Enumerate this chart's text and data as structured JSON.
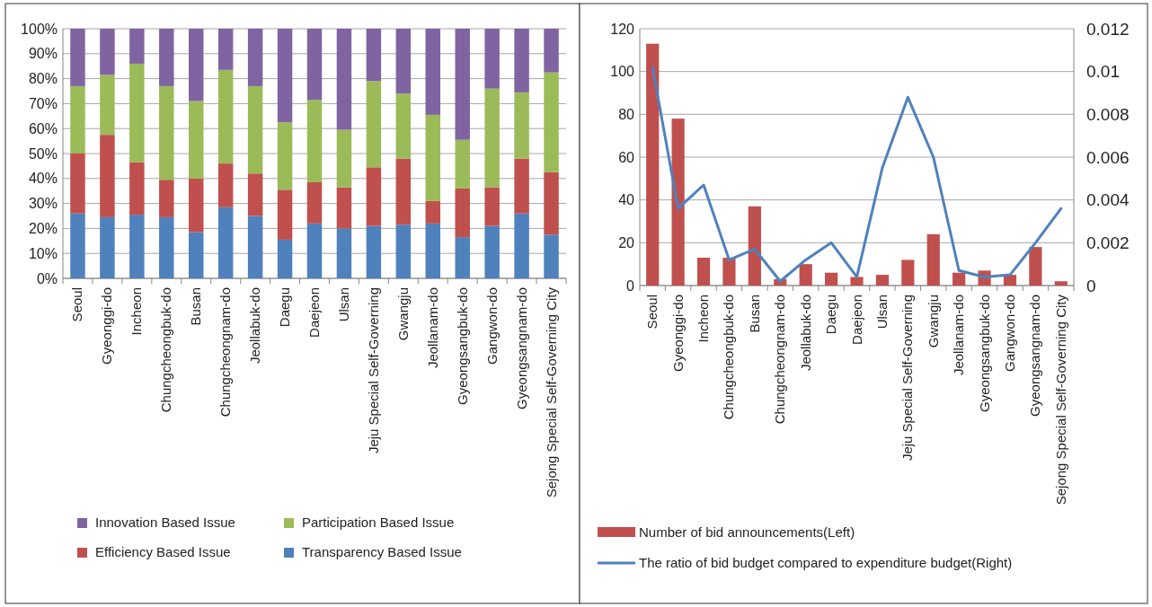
{
  "chart_data": [
    {
      "type": "bar",
      "stacked": true,
      "categories": [
        "Seoul",
        "Gyeonggi-do",
        "Incheon",
        "Chungcheongbuk-do",
        "Busan",
        "Chungcheongnam-do",
        "Jeollabuk-do",
        "Daegu",
        "Daejeon",
        "Ulsan",
        "Jeju Special Self-Governing",
        "Gwangju",
        "Jeollanam-do",
        "Gyeongsangbuk-do",
        "Gangwon-do",
        "Gyeongsangnam-do",
        "Sejong Special Self-Governing City"
      ],
      "series": [
        {
          "name": "Transparency Based Issue",
          "color": "#4f81bd",
          "values": [
            26,
            24.5,
            25.5,
            24.5,
            18.5,
            28.5,
            25,
            15.5,
            22,
            20,
            21,
            21.5,
            22,
            16.5,
            21,
            26,
            17.5
          ]
        },
        {
          "name": "Efficiency Based Issue",
          "color": "#c0504d",
          "values": [
            24,
            33,
            21,
            15,
            21.5,
            17.5,
            17,
            20,
            16.5,
            16.5,
            23.5,
            26.5,
            9,
            19.5,
            15.5,
            22,
            25
          ]
        },
        {
          "name": "Participation Based Issue",
          "color": "#9bbb59",
          "values": [
            27,
            24,
            39.5,
            37.5,
            31,
            37.5,
            35,
            27,
            33,
            23,
            34.5,
            26,
            34.5,
            19.5,
            39.5,
            26.5,
            40
          ]
        },
        {
          "name": "Innovation Based Issue",
          "color": "#8064a2",
          "values": [
            23,
            18.5,
            14,
            23,
            29,
            16.5,
            23,
            37.5,
            28.5,
            40.5,
            21,
            26,
            34.5,
            44.5,
            24,
            25.5,
            17.5
          ]
        }
      ],
      "ylim": [
        0,
        100
      ],
      "yticks": [
        {
          "value": 0,
          "label": "0%"
        },
        {
          "value": 10,
          "label": "10%"
        },
        {
          "value": 20,
          "label": "20%"
        },
        {
          "value": 30,
          "label": "30%"
        },
        {
          "value": 40,
          "label": "40%"
        },
        {
          "value": 50,
          "label": "50%"
        },
        {
          "value": 60,
          "label": "60%"
        },
        {
          "value": 70,
          "label": "70%"
        },
        {
          "value": 80,
          "label": "80%"
        },
        {
          "value": 90,
          "label": "90%"
        },
        {
          "value": 100,
          "label": "100%"
        }
      ],
      "grid": "y",
      "legend": "bottom"
    },
    {
      "type": "bar",
      "categories": [
        "Seoul",
        "Gyeonggi-do",
        "Incheon",
        "Chungcheongbuk-do",
        "Busan",
        "Chungcheongnam-do",
        "Jeollabuk-do",
        "Daegu",
        "Daejeon",
        "Ulsan",
        "Jeju Special Self-Governing",
        "Gwangju",
        "Jeollanam-do",
        "Gyeongsangbuk-do",
        "Gangwon-do",
        "Gyeongsangnam-do",
        "Sejong Special Self-Governing City"
      ],
      "series": [
        {
          "name": "Number of bid announcements(Left)",
          "type": "bar",
          "color": "#c0504d",
          "values": [
            113,
            78,
            13,
            13,
            37,
            3,
            10,
            6,
            4,
            5,
            12,
            24,
            6,
            7,
            5,
            18,
            2
          ]
        },
        {
          "name": "The ratio of bid budget compared to expenditure budget(Right)",
          "type": "line",
          "axis": "y2",
          "color": "#4f81bd",
          "values": [
            0.0102,
            0.0036,
            0.0047,
            0.0012,
            0.0017,
            0.0002,
            0.0012,
            0.002,
            0.0004,
            0.0055,
            0.0088,
            0.006,
            0.0007,
            0.0004,
            0.0005,
            0.002,
            0.0036
          ]
        }
      ],
      "ylim": [
        0,
        120
      ],
      "yticks": [
        0,
        20,
        40,
        60,
        80,
        100,
        120
      ],
      "y2lim": [
        0,
        0.012
      ],
      "y2ticks": [
        {
          "value": 0,
          "label": "0"
        },
        0.002,
        0.004,
        0.006,
        0.008,
        0.01,
        0.012
      ],
      "grid": "y",
      "legend": "bottom"
    }
  ]
}
